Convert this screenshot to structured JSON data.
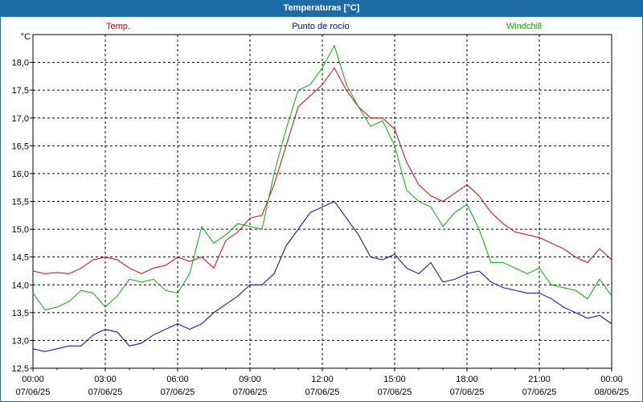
{
  "window": {
    "title": "Temperaturas [°C]"
  },
  "chart_data": {
    "type": "line",
    "title": "Temperaturas [°C]",
    "ylabel": "°C",
    "ylim": [
      12.5,
      18.5
    ],
    "yticks": [
      "12,5",
      "13,0",
      "13,5",
      "14,0",
      "14,5",
      "15,0",
      "15,5",
      "16,0",
      "16,5",
      "17,0",
      "17,5",
      "18,0"
    ],
    "xticks": [
      {
        "time": "00:00",
        "date": "07/06/25"
      },
      {
        "time": "03:00",
        "date": "07/06/25"
      },
      {
        "time": "06:00",
        "date": "07/06/25"
      },
      {
        "time": "09:00",
        "date": "07/06/25"
      },
      {
        "time": "12:00",
        "date": "07/06/25"
      },
      {
        "time": "15:00",
        "date": "07/06/25"
      },
      {
        "time": "18:00",
        "date": "07/06/25"
      },
      {
        "time": "21:00",
        "date": "07/06/25"
      },
      {
        "time": "00:00",
        "date": "08/06/25"
      }
    ],
    "grid": true,
    "x_hours": [
      0,
      0.5,
      1,
      1.5,
      2,
      2.5,
      3,
      3.5,
      4,
      4.5,
      5,
      5.5,
      6,
      6.5,
      7,
      7.5,
      8,
      8.5,
      9,
      9.5,
      10,
      10.5,
      11,
      11.5,
      12,
      12.5,
      13,
      13.5,
      14,
      14.5,
      15,
      15.5,
      16,
      16.5,
      17,
      17.5,
      18,
      18.5,
      19,
      19.5,
      20,
      20.5,
      21,
      21.5,
      22,
      22.5,
      23,
      23.5,
      24
    ],
    "series": [
      {
        "name": "Temp.",
        "color": "#e00000",
        "values": [
          14.25,
          14.2,
          14.22,
          14.2,
          14.3,
          14.45,
          14.5,
          14.45,
          14.3,
          14.2,
          14.3,
          14.35,
          14.5,
          14.42,
          14.5,
          14.3,
          14.8,
          14.95,
          15.2,
          15.25,
          15.8,
          16.5,
          17.2,
          17.4,
          17.6,
          17.9,
          17.5,
          17.2,
          17.0,
          17.0,
          16.8,
          16.2,
          15.8,
          15.6,
          15.5,
          15.65,
          15.8,
          15.6,
          15.3,
          15.1,
          14.95,
          14.9,
          14.85,
          14.75,
          14.65,
          14.5,
          14.4,
          14.65,
          14.45
        ]
      },
      {
        "name": "Punto de rocío",
        "color": "#0000c0",
        "values": [
          12.85,
          12.8,
          12.85,
          12.9,
          12.9,
          13.1,
          13.2,
          13.15,
          12.9,
          12.95,
          13.1,
          13.2,
          13.3,
          13.2,
          13.3,
          13.5,
          13.65,
          13.8,
          14.0,
          14.0,
          14.2,
          14.7,
          15.0,
          15.3,
          15.4,
          15.5,
          15.2,
          14.9,
          14.5,
          14.45,
          14.55,
          14.3,
          14.2,
          14.4,
          14.05,
          14.1,
          14.2,
          14.25,
          14.05,
          13.95,
          13.9,
          13.85,
          13.85,
          13.75,
          13.6,
          13.5,
          13.4,
          13.45,
          13.3
        ]
      },
      {
        "name": "Windchill",
        "color": "#00b000",
        "values": [
          13.85,
          13.55,
          13.6,
          13.7,
          13.9,
          13.85,
          13.6,
          13.8,
          14.1,
          14.05,
          14.1,
          13.9,
          13.85,
          14.2,
          15.05,
          14.75,
          14.9,
          15.1,
          15.05,
          15.0,
          16.0,
          16.8,
          17.5,
          17.6,
          17.9,
          18.3,
          17.6,
          17.2,
          16.85,
          16.95,
          16.5,
          15.7,
          15.5,
          15.4,
          15.05,
          15.3,
          15.45,
          15.0,
          14.4,
          14.4,
          14.3,
          14.2,
          14.3,
          14.0,
          13.95,
          13.9,
          13.75,
          14.1,
          13.8
        ]
      }
    ]
  }
}
